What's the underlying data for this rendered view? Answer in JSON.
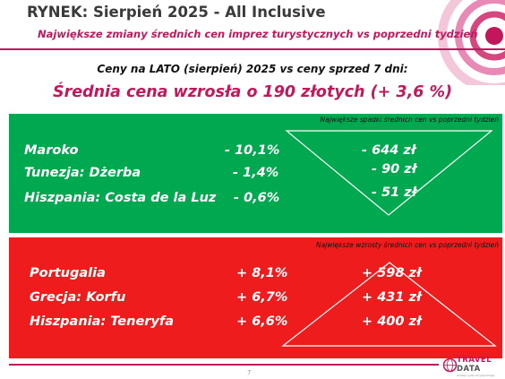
{
  "header": {
    "title": "RYNEK: Sierpień 2025 - All Inclusive",
    "subtitle": "Największe zmiany średnich cen imprez turystycznych vs poprzedni tydzień"
  },
  "summary": {
    "comparison": "Ceny na LATO (sierpień) 2025 vs ceny sprzed 7 dni:",
    "average_change": "Średnia cena wzrosła o 190 złotych (+ 3,6 %)"
  },
  "decreases": {
    "note": "Największe spadki średnich cen vs poprzedni tydzień",
    "rows": [
      {
        "destination": "Maroko",
        "percent": "-  10,1%",
        "amount": "- 644 zł"
      },
      {
        "destination": "Tunezja: Dżerba",
        "percent": "-  1,4%",
        "amount": "- 90 zł"
      },
      {
        "destination": "Hiszpania: Costa de la Luz",
        "percent": "-  0,6%",
        "amount": "- 51 zł"
      }
    ]
  },
  "increases": {
    "note": "Największe wzrosty średnich cen vs poprzedni tydzień",
    "rows": [
      {
        "destination": "Portugalia",
        "percent": "+ 8,1%",
        "amount": "+ 598 zł"
      },
      {
        "destination": "Grecja: Korfu",
        "percent": "+ 6,7%",
        "amount": "+ 431 zł"
      },
      {
        "destination": "Hiszpania: Teneryfa",
        "percent": "+ 6,6%",
        "amount": "+ 400 zł"
      }
    ]
  },
  "footer": {
    "page_number": "7",
    "logo_line1": "TRAVEL",
    "logo_line2": "DATA",
    "logo_tagline": "Analizy rynku turystycznego"
  },
  "colors": {
    "accent": "#c2185b",
    "decrease_panel": "#00a84f",
    "increase_panel": "#ee1c1c"
  }
}
